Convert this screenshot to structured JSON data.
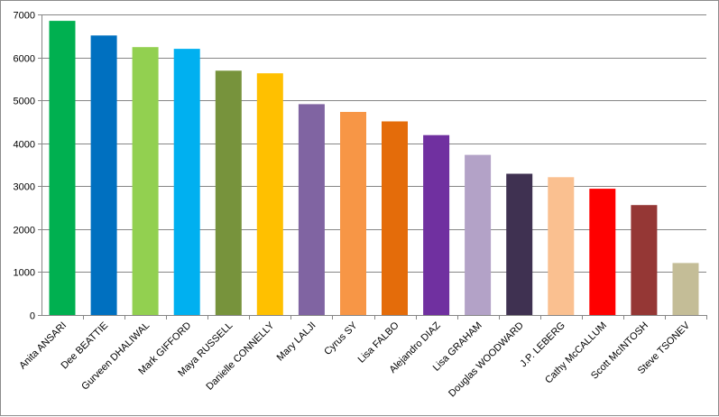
{
  "chart_data": {
    "type": "bar",
    "title": "",
    "xlabel": "",
    "ylabel": "",
    "ylim": [
      0,
      7000
    ],
    "yticks": [
      0,
      1000,
      2000,
      3000,
      4000,
      5000,
      6000,
      7000
    ],
    "grid": true,
    "legend": "none",
    "categories": [
      "Anita ANSARI",
      "Dee BEATTIE",
      "Gurveen DHALIWAL",
      "Mark GIFFORD",
      "Maya RUSSELL",
      "Danielle CONNELLY",
      "Mary LALJI",
      "Cyrus SY",
      "Lisa FALBO",
      "Alejandro DIAZ",
      "Lisa GRAHAM",
      "Douglas WOODWARD",
      "J.P. LEBERG",
      "Cathy McCALLUM",
      "Scott McINTOSH",
      "Steve TSONEV"
    ],
    "values": [
      6850,
      6510,
      6240,
      6200,
      5690,
      5630,
      4910,
      4730,
      4510,
      4190,
      3730,
      3290,
      3210,
      2940,
      2560,
      1210
    ],
    "colors": [
      "#00b050",
      "#0070c0",
      "#92d050",
      "#00b0f0",
      "#77933c",
      "#ffc000",
      "#8064a2",
      "#f79646",
      "#e46c0a",
      "#7030a0",
      "#b3a2c7",
      "#3f3151",
      "#fac090",
      "#ff0000",
      "#953735",
      "#c4bd97"
    ]
  }
}
